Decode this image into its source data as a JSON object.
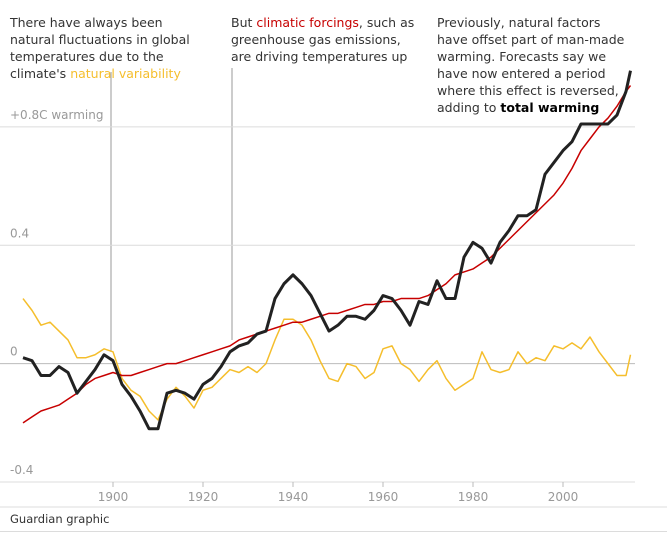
{
  "chart_data": {
    "type": "line",
    "annotations": [
      [
        "There have always been",
        "natural fluctuations in global",
        "temperatures due to the",
        "climate's"
      ],
      [
        "But",
        ", such as",
        "greenhouse gas emissions,",
        "are driving temperatures up"
      ],
      [
        "Previously, natural factors",
        "have offset part of man-made",
        "warming. Forecasts say we",
        "have now entered a period",
        "where this effect is reversed,",
        "adding to"
      ]
    ],
    "source": "Guardian graphic",
    "x": [
      1880,
      1882,
      1884,
      1886,
      1888,
      1890,
      1892,
      1894,
      1896,
      1898,
      1900,
      1902,
      1904,
      1906,
      1908,
      1910,
      1912,
      1914,
      1916,
      1918,
      1920,
      1922,
      1924,
      1926,
      1928,
      1930,
      1932,
      1934,
      1936,
      1938,
      1940,
      1942,
      1944,
      1946,
      1948,
      1950,
      1952,
      1954,
      1956,
      1958,
      1960,
      1962,
      1964,
      1966,
      1968,
      1970,
      1972,
      1974,
      1976,
      1978,
      1980,
      1982,
      1984,
      1986,
      1988,
      1990,
      1992,
      1994,
      1996,
      1998,
      2000,
      2002,
      2004,
      2006,
      2008,
      2010,
      2012,
      2014,
      2015
    ],
    "series": [
      {
        "name": "total warming",
        "color": "#222222",
        "values": [
          0.02,
          0.01,
          -0.04,
          -0.04,
          -0.01,
          -0.03,
          -0.1,
          -0.06,
          -0.02,
          0.03,
          0.01,
          -0.07,
          -0.11,
          -0.16,
          -0.22,
          -0.22,
          -0.1,
          -0.09,
          -0.1,
          -0.12,
          -0.07,
          -0.05,
          -0.01,
          0.04,
          0.06,
          0.07,
          0.1,
          0.11,
          0.22,
          0.27,
          0.3,
          0.27,
          0.23,
          0.17,
          0.11,
          0.13,
          0.16,
          0.16,
          0.15,
          0.18,
          0.23,
          0.22,
          0.18,
          0.13,
          0.21,
          0.2,
          0.28,
          0.22,
          0.22,
          0.36,
          0.41,
          0.39,
          0.34,
          0.41,
          0.45,
          0.5,
          0.5,
          0.52,
          0.64,
          0.68,
          0.72,
          0.75,
          0.81,
          0.81,
          0.81,
          0.81,
          0.84,
          0.92,
          0.99
        ]
      },
      {
        "name": "climatic forcings",
        "color": "#c70000",
        "values": [
          -0.2,
          -0.18,
          -0.16,
          -0.15,
          -0.14,
          -0.12,
          -0.1,
          -0.07,
          -0.05,
          -0.04,
          -0.03,
          -0.04,
          -0.04,
          -0.03,
          -0.02,
          -0.01,
          0.0,
          0.0,
          0.01,
          0.02,
          0.03,
          0.04,
          0.05,
          0.06,
          0.08,
          0.09,
          0.1,
          0.11,
          0.12,
          0.13,
          0.14,
          0.14,
          0.15,
          0.16,
          0.17,
          0.17,
          0.18,
          0.19,
          0.2,
          0.2,
          0.21,
          0.21,
          0.22,
          0.22,
          0.22,
          0.23,
          0.25,
          0.27,
          0.3,
          0.31,
          0.32,
          0.34,
          0.36,
          0.39,
          0.42,
          0.45,
          0.48,
          0.51,
          0.54,
          0.57,
          0.61,
          0.66,
          0.72,
          0.76,
          0.8,
          0.83,
          0.87,
          0.92,
          0.94
        ]
      },
      {
        "name": "natural variability",
        "color": "#f5be2c",
        "values": [
          0.22,
          0.18,
          0.13,
          0.14,
          0.11,
          0.08,
          0.02,
          0.02,
          0.03,
          0.05,
          0.04,
          -0.05,
          -0.09,
          -0.11,
          -0.16,
          -0.19,
          -0.12,
          -0.08,
          -0.11,
          -0.15,
          -0.09,
          -0.08,
          -0.05,
          -0.02,
          -0.03,
          -0.01,
          -0.03,
          0.0,
          0.08,
          0.15,
          0.15,
          0.13,
          0.08,
          0.01,
          -0.05,
          -0.06,
          0.0,
          -0.01,
          -0.05,
          -0.03,
          0.05,
          0.06,
          0.0,
          -0.02,
          -0.06,
          -0.02,
          0.01,
          -0.05,
          -0.09,
          -0.07,
          -0.05,
          0.04,
          -0.02,
          -0.03,
          -0.02,
          0.04,
          0.0,
          0.02,
          0.01,
          0.06,
          0.05,
          0.07,
          0.05,
          0.09,
          0.04,
          0.0,
          -0.04,
          -0.04,
          0.03
        ]
      }
    ],
    "xlim": [
      1878,
      2016
    ],
    "xticks": [
      1900,
      1920,
      1940,
      1960,
      1980,
      2000
    ],
    "ylim": [
      -0.4,
      1.0
    ],
    "yticks": [
      -0.4,
      0,
      0.4,
      {
        "value": 0.8,
        "label": "+0.8C warming"
      }
    ],
    "grid": true
  }
}
